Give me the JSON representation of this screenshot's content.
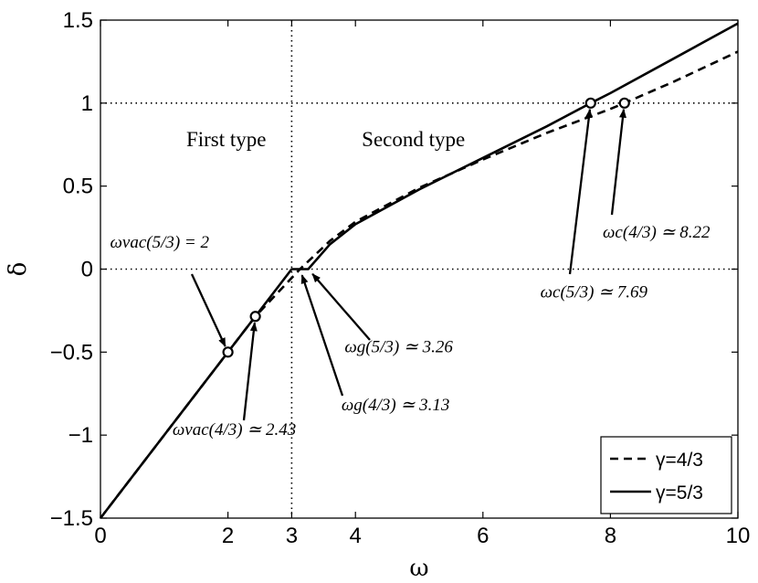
{
  "chart_data": {
    "type": "line",
    "xlabel": "ω",
    "ylabel": "δ",
    "xlim": [
      0,
      10
    ],
    "ylim": [
      -1.5,
      1.5
    ],
    "xticks": [
      0,
      2,
      3,
      4,
      6,
      8,
      10
    ],
    "xtick_labels": [
      "0",
      "2",
      "3",
      "4",
      "6",
      "8",
      "10"
    ],
    "yticks": [
      -1.5,
      -1,
      -0.5,
      0,
      0.5,
      1,
      1.5
    ],
    "ytick_labels": [
      "−1.5",
      "−1",
      "−0.5",
      "0",
      "0.5",
      "1",
      "1.5"
    ],
    "grid": false,
    "legend_position": "bottom-right",
    "reference_lines": [
      {
        "orientation": "vertical",
        "value": 3,
        "style": "dotted"
      },
      {
        "orientation": "horizontal",
        "value": 0,
        "style": "dotted"
      },
      {
        "orientation": "horizontal",
        "value": 1,
        "style": "dotted"
      }
    ],
    "region_labels": [
      {
        "text": "First type",
        "x": 2.6,
        "y": 0.74
      },
      {
        "text": "Second type",
        "x": 4.1,
        "y": 0.74
      }
    ],
    "series": [
      {
        "name": "γ=4/3",
        "style": "dashed",
        "x": [
          0,
          2.43,
          3.13,
          3.6,
          4.0,
          5.0,
          6.0,
          7.0,
          8.0,
          8.22,
          9.0,
          10.0
        ],
        "y": [
          -1.5,
          -0.285,
          0.0,
          0.17,
          0.285,
          0.49,
          0.66,
          0.82,
          0.965,
          1.0,
          1.13,
          1.31
        ]
      },
      {
        "name": "γ=5/3",
        "style": "solid",
        "x": [
          0,
          2.0,
          3.0,
          3.26,
          3.6,
          4.0,
          5.0,
          6.0,
          7.0,
          7.69,
          8.0,
          9.0,
          10.0
        ],
        "y": [
          -1.5,
          -0.5,
          0.0,
          0.0,
          0.15,
          0.27,
          0.48,
          0.67,
          0.86,
          1.0,
          1.06,
          1.27,
          1.48
        ]
      }
    ],
    "markers": [
      {
        "x": 2.0,
        "y": -0.5
      },
      {
        "x": 2.43,
        "y": -0.285
      },
      {
        "x": 7.69,
        "y": 1.0
      },
      {
        "x": 8.22,
        "y": 1.0
      }
    ],
    "annotations": [
      {
        "text": "ωvac(5/3) = 2",
        "text_x": 0.15,
        "text_y": 0.13,
        "target_x": 2.0,
        "target_y": -0.5
      },
      {
        "text": "ωvac(4/3) ≃ 2.43",
        "text_x": 1.13,
        "text_y": -1.0,
        "target_x": 2.43,
        "target_y": -0.285
      },
      {
        "text": "ωg(5/3) ≃ 3.26",
        "text_x": 3.83,
        "text_y": -0.5,
        "target_x": 3.26,
        "target_y": 0.0
      },
      {
        "text": "ωg(4/3) ≃ 3.13",
        "text_x": 3.78,
        "text_y": -0.85,
        "target_x": 3.13,
        "target_y": 0.0
      },
      {
        "text": "ωc(5/3) ≃ 7.69",
        "text_x": 6.9,
        "text_y": -0.17,
        "target_x": 7.69,
        "target_y": 1.0
      },
      {
        "text": "ωc(4/3) ≃ 8.22",
        "text_x": 7.88,
        "text_y": 0.19,
        "target_x": 8.22,
        "target_y": 1.0
      }
    ]
  }
}
